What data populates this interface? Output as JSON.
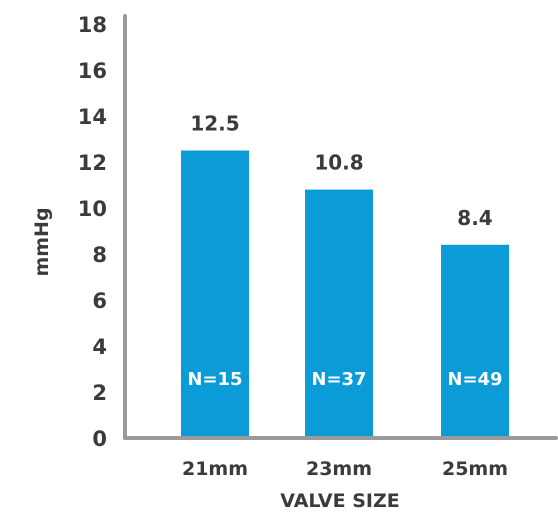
{
  "chart_data": {
    "type": "bar",
    "categories": [
      "21mm",
      "23mm",
      "25mm"
    ],
    "values": [
      12.5,
      10.8,
      8.4
    ],
    "value_labels": [
      "12.5",
      "10.8",
      "8.4"
    ],
    "n_labels": [
      "N=15",
      "N=37",
      "N=49"
    ],
    "title": "",
    "xlabel": "VALVE SIZE",
    "ylabel": "mmHg",
    "ylim": [
      0,
      18
    ],
    "yticks": [
      "0",
      "2",
      "4",
      "6",
      "8",
      "10",
      "12",
      "14",
      "16",
      "18"
    ],
    "grid": false,
    "colors": {
      "bar": "#0b9bd6",
      "axis": "#9a9a9a",
      "text": "#3b3b3b",
      "n_text": "#ffffff"
    }
  }
}
